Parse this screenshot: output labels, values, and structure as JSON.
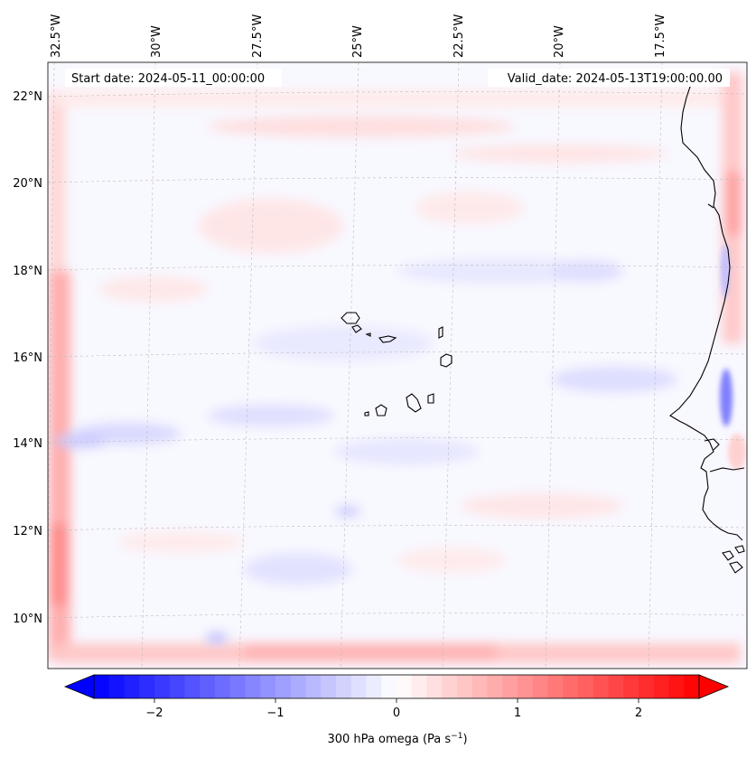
{
  "annotations": {
    "start_date": "Start date: 2024-05-11_00:00:00",
    "valid_date": "Valid_date: 2024-05-13T19:00:00.00"
  },
  "gridlines": {
    "longitude_labels": [
      "32.5°W",
      "30°W",
      "27.5°W",
      "25°W",
      "22.5°W",
      "20°W",
      "17.5°W"
    ],
    "latitude_labels": [
      "22°N",
      "20°N",
      "18°N",
      "16°N",
      "14°N",
      "12°N",
      "10°N"
    ]
  },
  "colorbar": {
    "ticks": [
      "−2",
      "−1",
      "0",
      "1",
      "2"
    ],
    "label_prefix": "300 hPa omega (Pa s",
    "label_exp": "−1",
    "label_suffix": ")",
    "min": -2.7,
    "max": 2.7,
    "colors": {
      "low": "#0000ff",
      "mid": "#ffffff",
      "high": "#ff0000"
    }
  },
  "colors": {
    "coast": "#000000",
    "grid": "#b8b8b8"
  }
}
